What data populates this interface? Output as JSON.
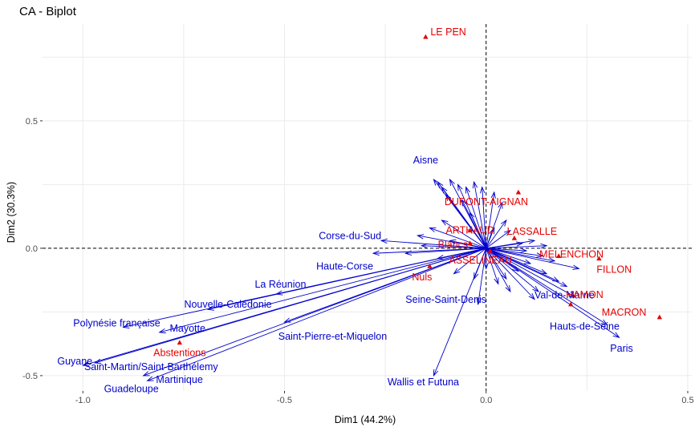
{
  "page": {
    "title": "CA - Biplot"
  },
  "chart_data": {
    "type": "scatter",
    "title": "CA - Biplot",
    "xlabel": "Dim1 (44.2%)",
    "ylabel": "Dim2 (30.3%)",
    "xlim": [
      -1.1,
      0.51
    ],
    "ylim": [
      -0.56,
      0.88
    ],
    "x_ticks": [
      -1.0,
      -0.5,
      0.0,
      0.5
    ],
    "x_tick_labels": [
      "-1.0",
      "-0.5",
      "0.0",
      "0.5"
    ],
    "y_ticks": [
      -0.5,
      0.0,
      0.5
    ],
    "y_tick_labels": [
      "-0.5",
      "0.0",
      "0.5"
    ],
    "grid": true,
    "reference_lines": {
      "x": 0,
      "y": 0,
      "style": "dashed"
    },
    "colors": {
      "rows": "#e60000",
      "columns": "#0000cc",
      "grid": "#ebebeb"
    },
    "series": [
      {
        "name": "rows",
        "marker": "triangle",
        "points": [
          {
            "label": "LE PEN",
            "x": -0.15,
            "y": 0.83
          },
          {
            "label": "DUPONT-AIGNAN",
            "x": 0.08,
            "y": 0.22
          },
          {
            "label": "LASSALLE",
            "x": 0.07,
            "y": 0.04
          },
          {
            "label": "ARTHAUD",
            "x": -0.04,
            "y": 0.07
          },
          {
            "label": "Blancs",
            "x": -0.04,
            "y": 0.02
          },
          {
            "label": "ASSELINEAU",
            "x": 0.01,
            "y": -0.01
          },
          {
            "label": "MELENCHON",
            "x": 0.18,
            "y": -0.03
          },
          {
            "label": "FILLON",
            "x": 0.28,
            "y": -0.04
          },
          {
            "label": "Nuls",
            "x": -0.14,
            "y": -0.07
          },
          {
            "label": "HAMON",
            "x": 0.21,
            "y": -0.22
          },
          {
            "label": "MACRON",
            "x": 0.43,
            "y": -0.27
          },
          {
            "label": "Abstentions",
            "x": -0.76,
            "y": -0.37
          }
        ]
      },
      {
        "name": "columns",
        "marker": "arrow",
        "points": [
          {
            "label": "Aisne",
            "x": -0.13,
            "y": 0.27
          },
          {
            "label": "Corse-du-Sud",
            "x": -0.26,
            "y": 0.03
          },
          {
            "label": "Haute-Corse",
            "x": -0.28,
            "y": -0.02
          },
          {
            "label": "La Réunion",
            "x": -0.52,
            "y": -0.18
          },
          {
            "label": "Nouvelle-Calédonie",
            "x": -0.69,
            "y": -0.24
          },
          {
            "label": "Polynésie française",
            "x": -0.9,
            "y": -0.31
          },
          {
            "label": "Saint-Pierre-et-Miquelon",
            "x": -0.5,
            "y": -0.29
          },
          {
            "label": "Mayotte",
            "x": -0.81,
            "y": -0.33
          },
          {
            "label": "Guyane",
            "x": -1.0,
            "y": -0.46
          },
          {
            "label": "Saint-Martin/Saint-Barthélemy",
            "x": -0.97,
            "y": -0.45
          },
          {
            "label": "Guadeloupe",
            "x": -0.84,
            "y": -0.52
          },
          {
            "label": "Martinique",
            "x": -0.85,
            "y": -0.5
          },
          {
            "label": "Wallis et Futuna",
            "x": -0.13,
            "y": -0.5
          },
          {
            "label": "Seine-Saint-Denis",
            "x": -0.02,
            "y": -0.22
          },
          {
            "label": "Val-de-Marne",
            "x": 0.12,
            "y": -0.2
          },
          {
            "label": "Hauts-de-Seine",
            "x": 0.3,
            "y": -0.3
          },
          {
            "label": "Paris",
            "x": 0.33,
            "y": -0.35
          }
        ]
      }
    ]
  }
}
